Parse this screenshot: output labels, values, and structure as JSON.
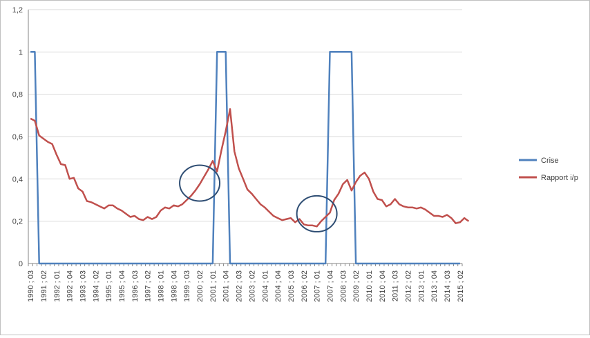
{
  "chart_data": {
    "type": "line",
    "title": "",
    "xlabel": "",
    "ylabel": "",
    "ylim": [
      0,
      1.2
    ],
    "yticks": [
      "0",
      "0,2",
      "0,4",
      "0,6",
      "0,8",
      "1",
      "1,2"
    ],
    "ytick_values": [
      0,
      0.2,
      0.4,
      0.6,
      0.8,
      1.0,
      1.2
    ],
    "grid": true,
    "legend_position": "right",
    "x_start": {
      "year": 1990,
      "quarter": 3
    },
    "x_end": {
      "year": 2015,
      "quarter": 2
    },
    "x_tick_labels": [
      "1990 ; 03",
      "1991 ; 02",
      "1992 ; 01",
      "1992 ; 04",
      "1993 ; 03",
      "1994 ; 02",
      "1995 ; 01",
      "1995 ; 04",
      "1996 ; 03",
      "1997 ; 02",
      "1998 ; 01",
      "1998 ; 04",
      "1999 ; 03",
      "2000 ; 02",
      "2001 ; 01",
      "2001 ; 04",
      "2002 ; 03",
      "2003 ; 02",
      "2004 ; 01",
      "2004 ; 04",
      "2005 ; 03",
      "2006 ; 02",
      "2007 ; 01",
      "2007 ; 04",
      "2008 ; 03",
      "2009 ; 02",
      "2010 ; 01",
      "2010 ; 04",
      "2011 ; 03",
      "2012 ; 02",
      "2013 ; 01",
      "2013 ; 04",
      "2014 ; 03",
      "2015 ; 02"
    ],
    "series": [
      {
        "name": "Crise",
        "color": "#4F81BD",
        "values": [
          1,
          1,
          0,
          0,
          0,
          0,
          0,
          0,
          0,
          0,
          0,
          0,
          0,
          0,
          0,
          0,
          0,
          0,
          0,
          0,
          0,
          0,
          0,
          0,
          0,
          0,
          0,
          0,
          0,
          0,
          0,
          0,
          0,
          0,
          0,
          0,
          0,
          0,
          0,
          0,
          0,
          0,
          0,
          1,
          1,
          1,
          0,
          0,
          0,
          0,
          0,
          0,
          0,
          0,
          0,
          0,
          0,
          0,
          0,
          0,
          0,
          0,
          0,
          0,
          0,
          0,
          0,
          0,
          0,
          1,
          1,
          1,
          1,
          1,
          1,
          0,
          0,
          0,
          0,
          0,
          0,
          0,
          0,
          0,
          0,
          0,
          0,
          0,
          0,
          0,
          0,
          0,
          0,
          0,
          0,
          0,
          0,
          0,
          0,
          0
        ]
      },
      {
        "name": "Rapport i/p",
        "color": "#C0504D",
        "values": [
          0.685,
          0.675,
          0.605,
          0.59,
          0.575,
          0.565,
          0.515,
          0.47,
          0.465,
          0.4,
          0.405,
          0.355,
          0.34,
          0.295,
          0.29,
          0.28,
          0.27,
          0.26,
          0.275,
          0.275,
          0.26,
          0.25,
          0.235,
          0.22,
          0.225,
          0.21,
          0.205,
          0.22,
          0.21,
          0.22,
          0.25,
          0.265,
          0.26,
          0.275,
          0.27,
          0.28,
          0.3,
          0.32,
          0.345,
          0.375,
          0.41,
          0.445,
          0.485,
          0.435,
          0.535,
          0.625,
          0.73,
          0.53,
          0.45,
          0.4,
          0.35,
          0.33,
          0.305,
          0.28,
          0.265,
          0.245,
          0.225,
          0.215,
          0.205,
          0.21,
          0.215,
          0.195,
          0.21,
          0.185,
          0.18,
          0.18,
          0.175,
          0.2,
          0.22,
          0.24,
          0.3,
          0.33,
          0.375,
          0.395,
          0.345,
          0.385,
          0.415,
          0.43,
          0.4,
          0.34,
          0.305,
          0.3,
          0.27,
          0.28,
          0.305,
          0.28,
          0.27,
          0.265,
          0.265,
          0.26,
          0.265,
          0.255,
          0.24,
          0.225,
          0.225,
          0.22,
          0.23,
          0.215,
          0.19,
          0.195,
          0.215,
          0.2
        ]
      }
    ],
    "annotations": [
      {
        "type": "ellipse",
        "label": "",
        "center_x": {
          "year": 2000,
          "quarter": 2
        },
        "center_y": 0.38
      },
      {
        "type": "ellipse",
        "label": "",
        "center_x": {
          "year": 2007,
          "quarter": 1
        },
        "center_y": 0.235
      }
    ]
  }
}
